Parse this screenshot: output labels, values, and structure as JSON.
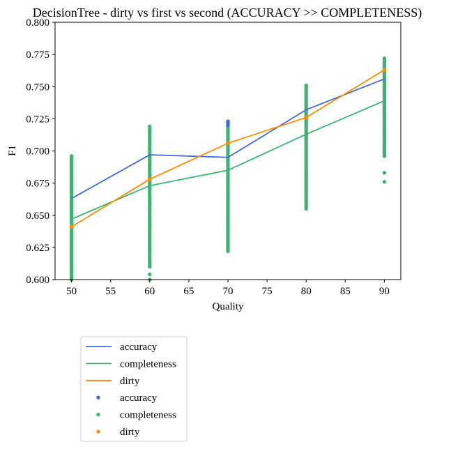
{
  "chart_data": {
    "type": "line",
    "title": "DecisionTree - dirty vs first vs second (ACCURACY >> COMPLETENESS)",
    "xlabel": "Quality",
    "ylabel": "F1",
    "xlim": [
      47.9,
      92.1
    ],
    "ylim": [
      0.6,
      0.8
    ],
    "xticks": [
      50,
      55,
      60,
      65,
      70,
      75,
      80,
      85,
      90
    ],
    "yticks": [
      0.6,
      0.625,
      0.65,
      0.675,
      0.7,
      0.725,
      0.75,
      0.775,
      0.8
    ],
    "xtick_labels": [
      "50",
      "55",
      "60",
      "65",
      "70",
      "75",
      "80",
      "85",
      "90"
    ],
    "ytick_labels": [
      "0.600",
      "0.625",
      "0.650",
      "0.675",
      "0.700",
      "0.725",
      "0.750",
      "0.775",
      "0.800"
    ],
    "grid": false,
    "legend_position": "below-left",
    "x": [
      50,
      60,
      70,
      80,
      90
    ],
    "series": [
      {
        "name": "accuracy",
        "kind": "line",
        "color": "#4169e1",
        "values": [
          0.663,
          0.697,
          0.695,
          0.732,
          0.756
        ]
      },
      {
        "name": "completeness",
        "kind": "line",
        "color": "#3cb371",
        "values": [
          0.647,
          0.673,
          0.685,
          0.713,
          0.739
        ]
      },
      {
        "name": "dirty",
        "kind": "line",
        "color": "#ff8c00",
        "values": [
          0.641,
          0.678,
          0.706,
          0.726,
          0.763
        ]
      }
    ],
    "scatter_series": [
      {
        "name": "accuracy",
        "color": "#4169e1",
        "points": [
          [
            70,
            0.723
          ],
          [
            70,
            0.722
          ],
          [
            70,
            0.721
          ],
          [
            70,
            0.72
          ]
        ]
      },
      {
        "name": "completeness",
        "color": "#3cb371",
        "ranges": [
          {
            "x": 50,
            "min": 0.6,
            "max": 0.696
          },
          {
            "x": 60,
            "min": 0.61,
            "max": 0.719
          },
          {
            "x": 70,
            "min": 0.622,
            "max": 0.723
          },
          {
            "x": 80,
            "min": 0.655,
            "max": 0.751
          },
          {
            "x": 90,
            "min": 0.696,
            "max": 0.772
          }
        ],
        "outliers": [
          [
            60,
            0.604
          ],
          [
            60,
            0.6
          ],
          [
            90,
            0.683
          ],
          [
            90,
            0.676
          ]
        ]
      },
      {
        "name": "dirty",
        "color": "#ff8c00",
        "points": [
          [
            50,
            0.641
          ],
          [
            60,
            0.678
          ],
          [
            70,
            0.706
          ],
          [
            80,
            0.726
          ],
          [
            90,
            0.763
          ]
        ]
      }
    ],
    "legend": [
      {
        "label": "accuracy",
        "kind": "line",
        "color": "#4169e1"
      },
      {
        "label": "completeness",
        "kind": "line",
        "color": "#3cb371"
      },
      {
        "label": "dirty",
        "kind": "line",
        "color": "#ff8c00"
      },
      {
        "label": "accuracy",
        "kind": "marker",
        "color": "#4169e1"
      },
      {
        "label": "completeness",
        "kind": "marker",
        "color": "#3cb371"
      },
      {
        "label": "dirty",
        "kind": "marker",
        "color": "#ff8c00"
      }
    ]
  }
}
